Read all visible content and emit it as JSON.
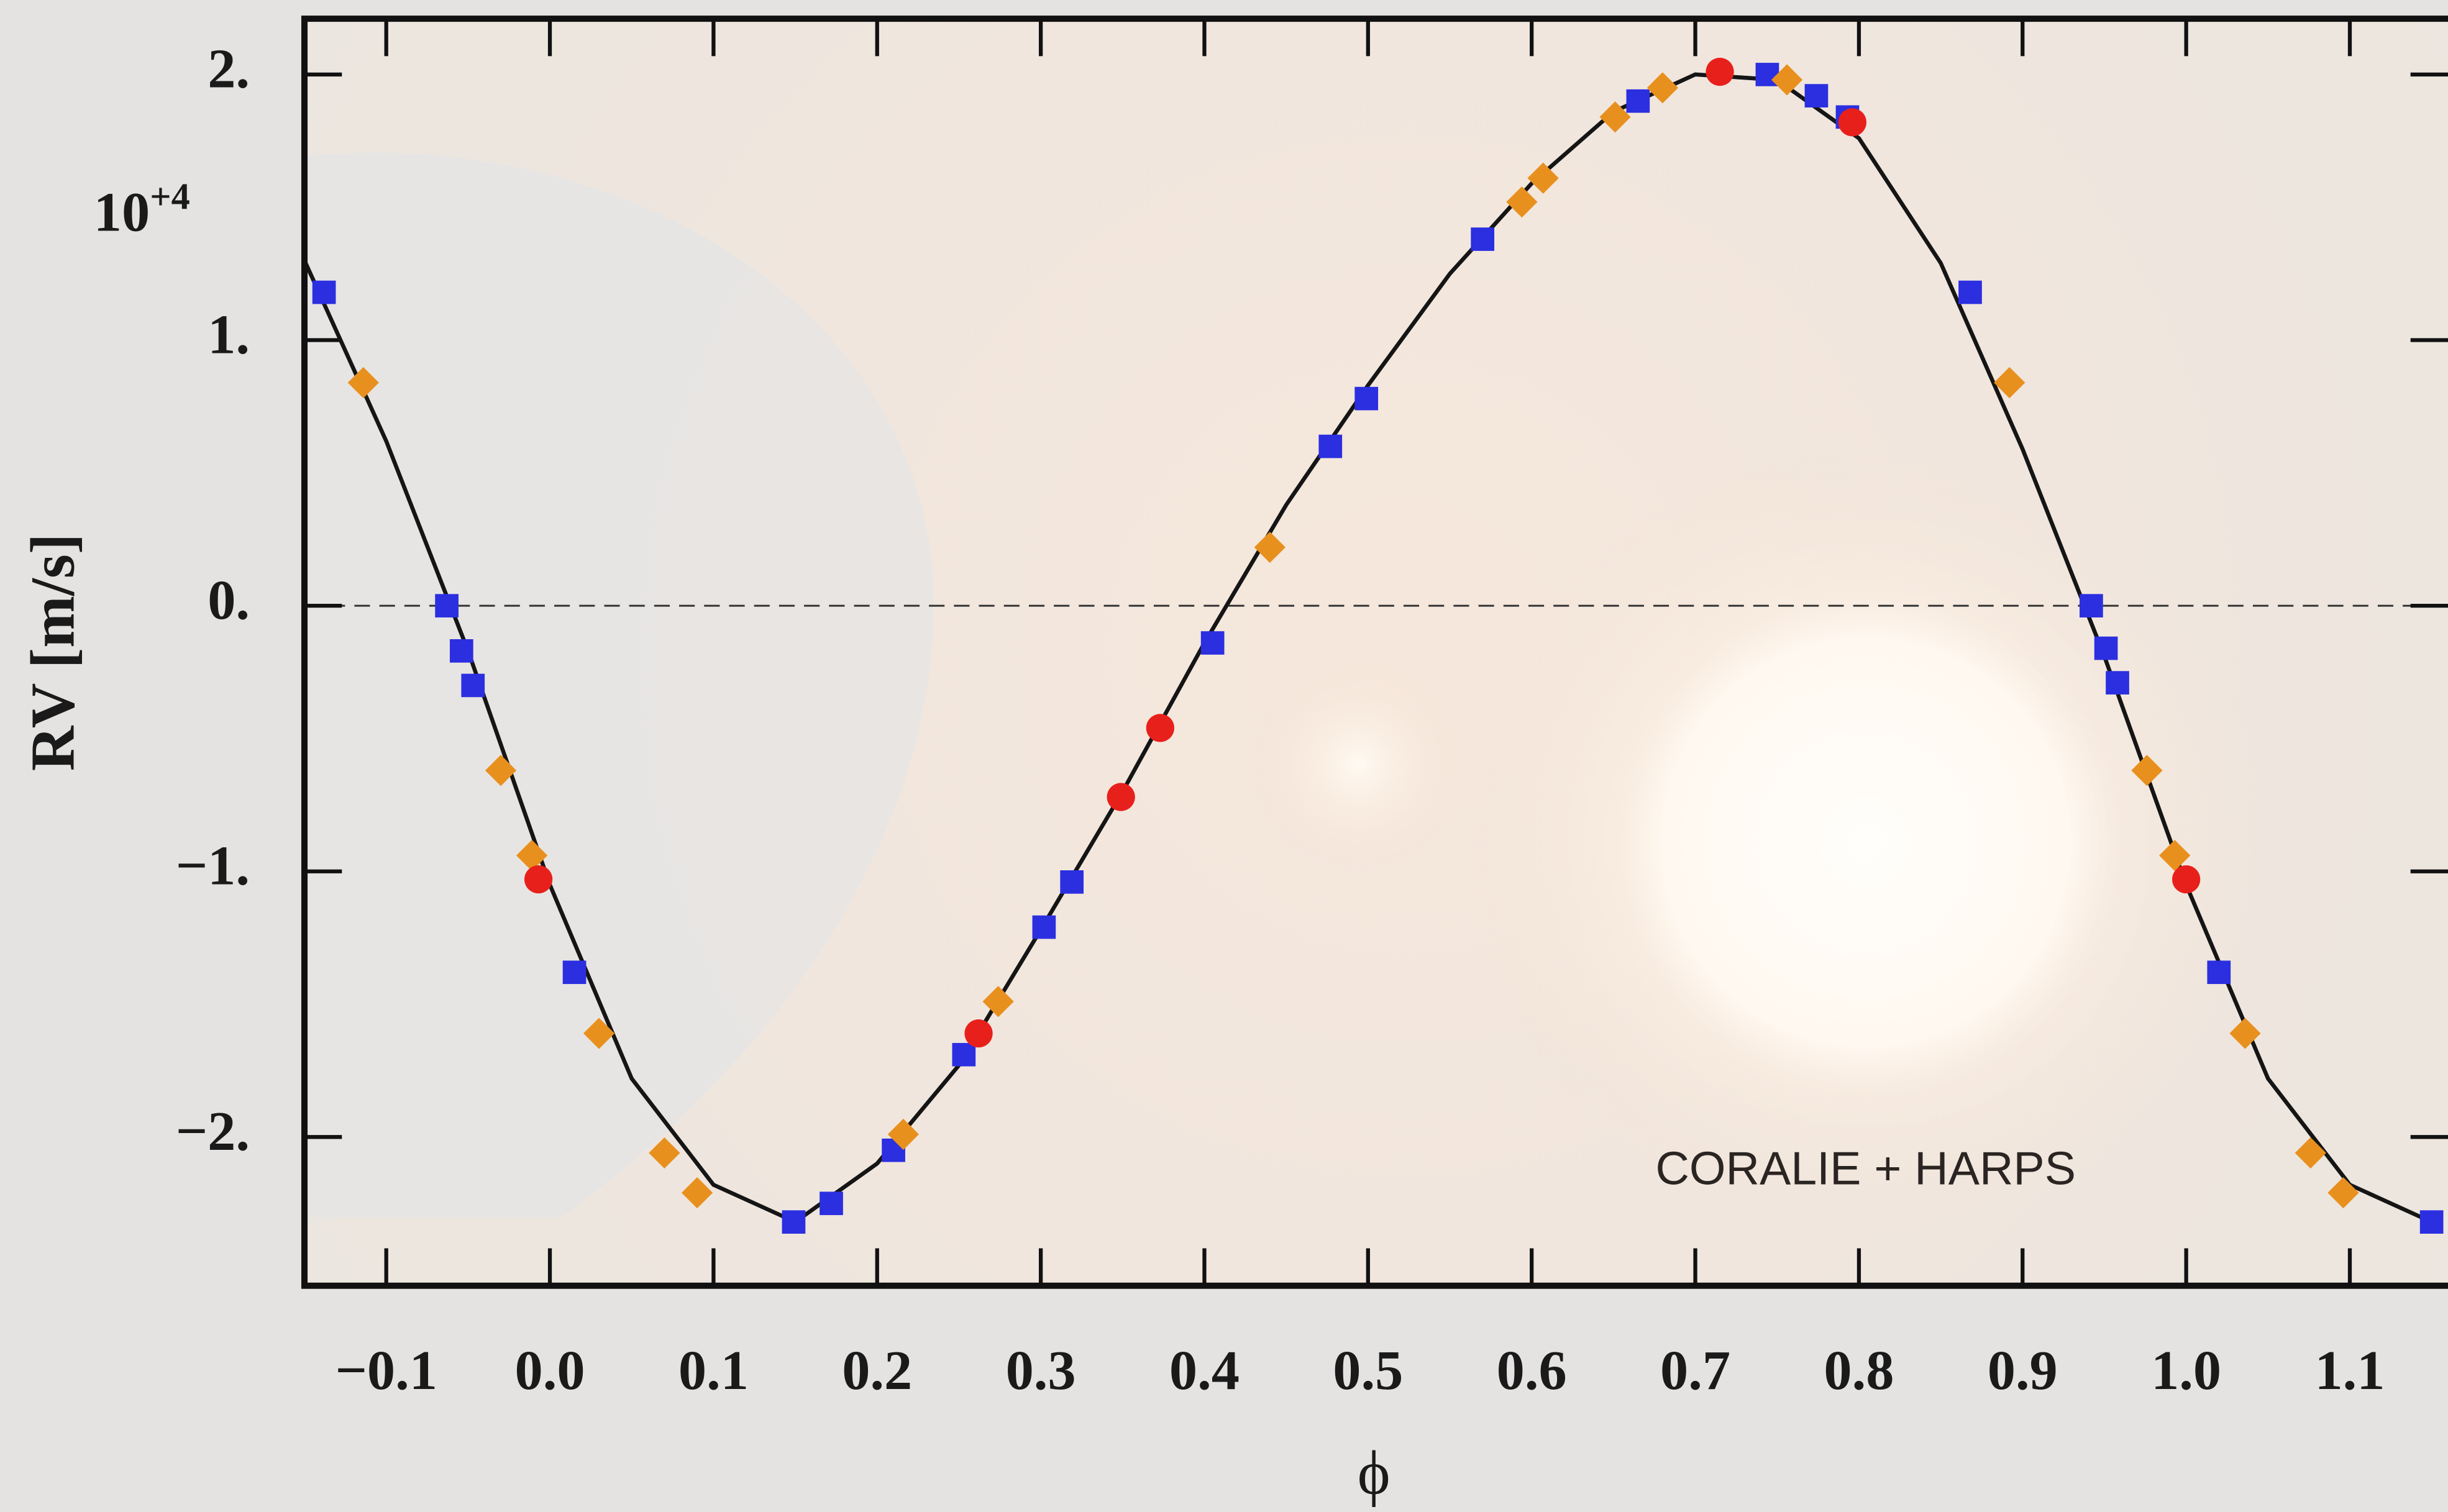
{
  "chart_data": {
    "type": "scatter",
    "y_label": "RV [m/s]",
    "x_label": "ϕ",
    "y_multiplier": {
      "base": "10",
      "exponent": "+4"
    },
    "annotation": "CORALIE + HARPS",
    "xlim": [
      -0.15,
      1.16
    ],
    "ylim": [
      -2.56,
      2.21
    ],
    "xticks": [
      {
        "value": -0.1,
        "label": "−0.1"
      },
      {
        "value": 0,
        "label": "0.0"
      },
      0.1,
      0.2,
      0.3,
      0.4,
      0.5,
      0.6,
      0.7,
      0.8,
      0.9,
      {
        "value": 1,
        "label": "1.0"
      },
      1.1
    ],
    "yticks": [
      {
        "value": -2,
        "label": "−2."
      },
      {
        "value": -1,
        "label": "−1."
      },
      {
        "value": 0,
        "label": "0."
      },
      {
        "value": 1,
        "label": "1."
      },
      {
        "value": 2,
        "label": "2."
      }
    ],
    "reference_line": 0,
    "model": {
      "color": "#151515",
      "x": [
        -0.15,
        -0.1,
        -0.05,
        0.0,
        0.05,
        0.1,
        0.15,
        0.2,
        0.25,
        0.3,
        0.35,
        0.4,
        0.45,
        0.5,
        0.55,
        0.6,
        0.65,
        0.7,
        0.75,
        0.8,
        0.85,
        0.9,
        0.95,
        1.0,
        1.05,
        1.1,
        1.15
      ],
      "values": [
        1.3,
        0.62,
        -0.17,
        -1.05,
        -1.78,
        -2.18,
        -2.32,
        -2.1,
        -1.73,
        -1.22,
        -0.7,
        -0.14,
        0.38,
        0.83,
        1.25,
        1.59,
        1.86,
        2.0,
        1.98,
        1.76,
        1.29,
        0.59,
        -0.19,
        -1.05,
        -1.78,
        -2.18,
        -2.32
      ]
    },
    "series": [
      {
        "color": "#2b2fe0",
        "marker": "square",
        "x": [
          -0.138,
          -0.063,
          -0.054,
          -0.047,
          0.015,
          0.149,
          0.172,
          0.21,
          0.253,
          0.302,
          0.319,
          0.405,
          0.477,
          0.499,
          0.57,
          0.665,
          0.744,
          0.774,
          0.793,
          0.868,
          0.942,
          0.951,
          0.958,
          1.02,
          1.15
        ],
        "values": [
          1.18,
          0.0,
          -0.17,
          -0.3,
          -1.38,
          -2.32,
          -2.25,
          -2.05,
          -1.69,
          -1.21,
          -1.04,
          -0.14,
          0.6,
          0.78,
          1.38,
          1.9,
          2.0,
          1.92,
          1.84,
          1.18,
          0.0,
          -0.16,
          -0.29,
          -1.38,
          -2.32
        ]
      },
      {
        "color": "#e8901e",
        "marker": "diamond",
        "x": [
          -0.114,
          -0.03,
          -0.011,
          0.03,
          0.07,
          0.09,
          0.216,
          0.274,
          0.44,
          0.594,
          0.607,
          0.651,
          0.68,
          0.756,
          0.892,
          0.976,
          0.993,
          1.036,
          1.076,
          1.096
        ],
        "values": [
          0.84,
          -0.62,
          -0.94,
          -1.61,
          -2.06,
          -2.21,
          -1.99,
          -1.49,
          0.22,
          1.52,
          1.61,
          1.84,
          1.95,
          1.98,
          0.84,
          -0.62,
          -0.94,
          -1.61,
          -2.06,
          -2.21
        ]
      },
      {
        "color": "#e8201c",
        "marker": "circle",
        "x": [
          -0.007,
          0.262,
          0.349,
          0.373,
          0.715,
          0.796,
          1.0
        ],
        "values": [
          -1.03,
          -1.61,
          -0.72,
          -0.46,
          2.01,
          1.82,
          -1.03
        ]
      }
    ]
  }
}
